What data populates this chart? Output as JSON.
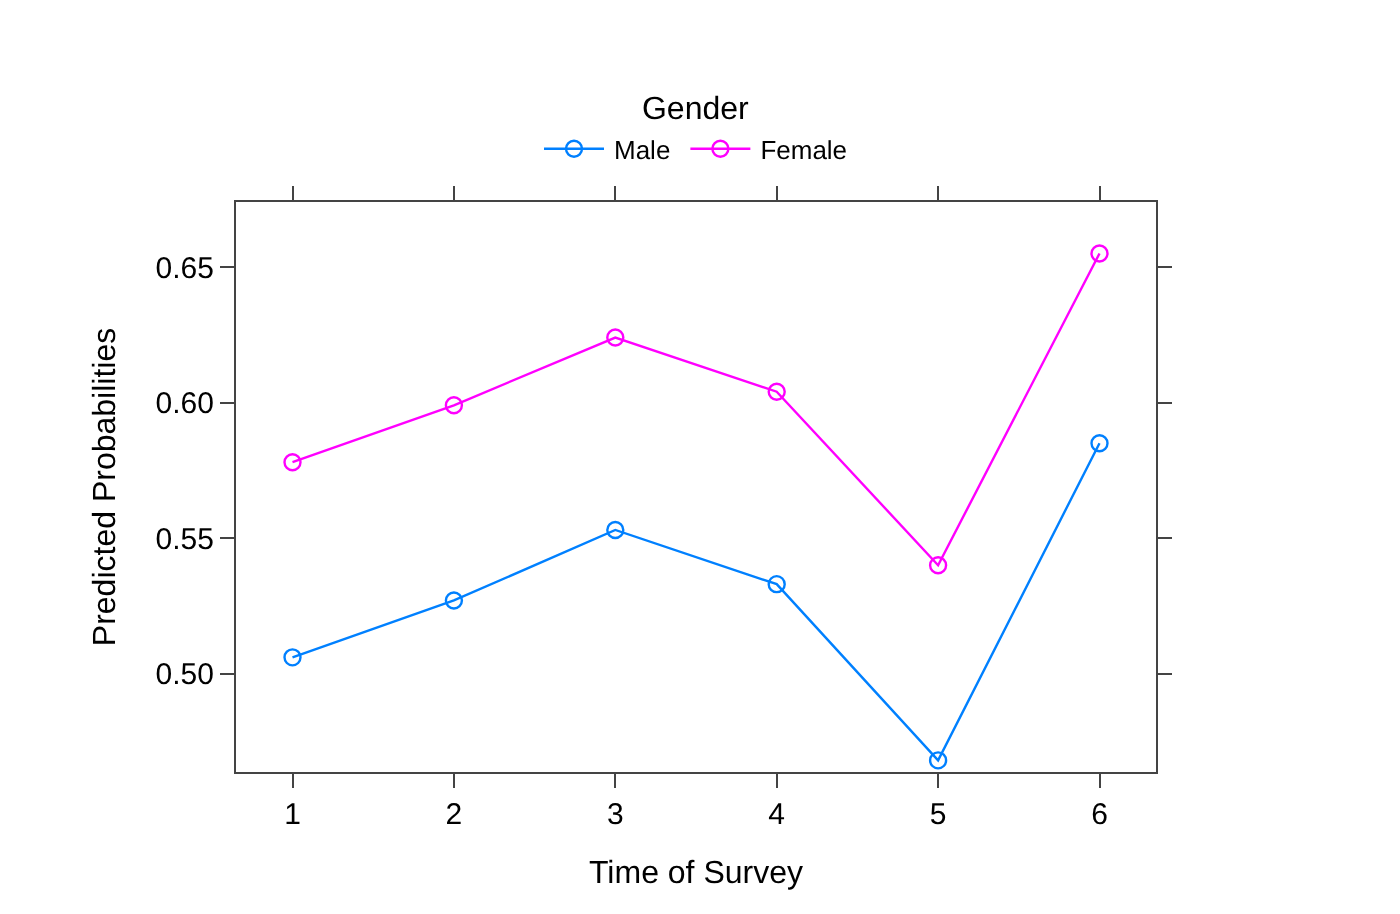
{
  "chart_data": {
    "type": "line",
    "xlabel": "Time of Survey",
    "ylabel": "Predicted Probabilities",
    "legend_title": "Gender",
    "legend": "top",
    "x": [
      1,
      2,
      3,
      4,
      5,
      6
    ],
    "series": [
      {
        "name": "Male",
        "color": "#0080ff",
        "values": [
          0.506,
          0.527,
          0.553,
          0.533,
          0.468,
          0.585
        ]
      },
      {
        "name": "Female",
        "color": "#ff00ff",
        "values": [
          0.578,
          0.599,
          0.624,
          0.604,
          0.54,
          0.655
        ]
      }
    ],
    "xlim": [
      0.65,
      6.35
    ],
    "ylim": [
      0.4637,
      0.674
    ],
    "xticks": [
      1,
      2,
      3,
      4,
      5,
      6
    ],
    "yticks": [
      {
        "value": 0.5,
        "label": "0.50"
      },
      0.55,
      {
        "value": 0.6,
        "label": "0.60"
      },
      0.65
    ],
    "marker": "circle",
    "line_style": "solid"
  }
}
